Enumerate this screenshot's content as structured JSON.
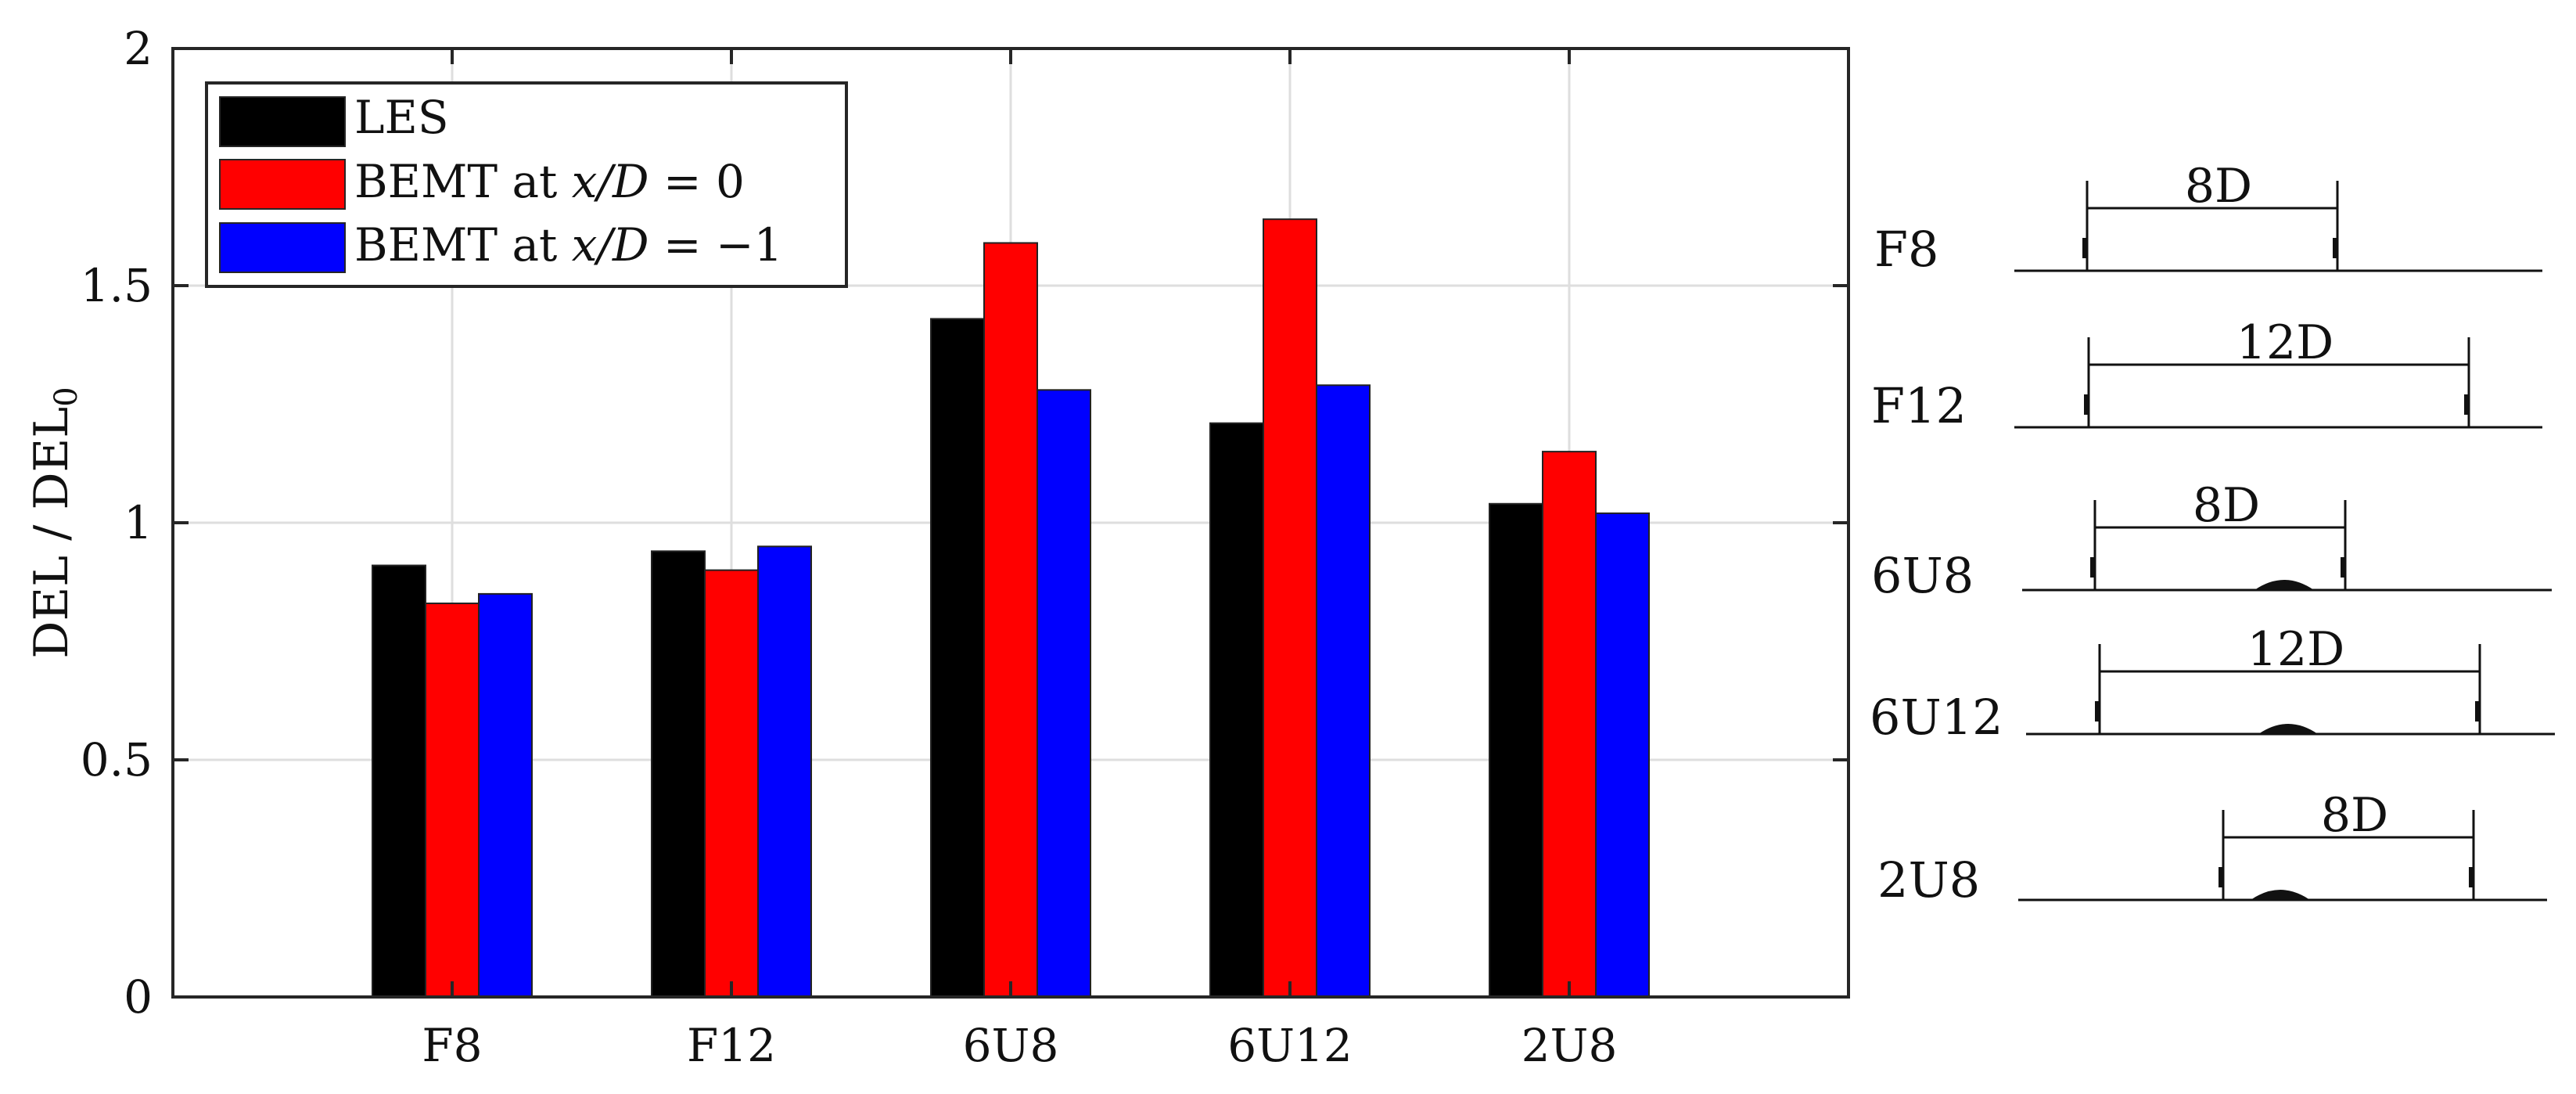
{
  "chart_data": {
    "type": "bar",
    "categories": [
      "F8",
      "F12",
      "6U8",
      "6U12",
      "2U8"
    ],
    "series": [
      {
        "name": "LES",
        "color": "#000000",
        "values": [
          0.91,
          0.94,
          1.43,
          1.21,
          1.04
        ]
      },
      {
        "name": "BEMT at x/D = 0",
        "color": "#ff0000",
        "values": [
          0.83,
          0.9,
          1.59,
          1.64,
          1.15
        ]
      },
      {
        "name": "BEMT at x/D = −1",
        "color": "#0000ff",
        "values": [
          0.85,
          0.95,
          1.28,
          1.29,
          1.02
        ]
      }
    ],
    "legend_labels": {
      "les": "LES",
      "bemt0_prefix": "BEMT at ",
      "bemt0_var": "x/D",
      "bemt0_eq": " = 0",
      "bemt1_prefix": "BEMT at ",
      "bemt1_var": "x/D",
      "bemt1_eq": " = −1"
    },
    "ylabel": {
      "main": "DEL / DEL",
      "sub": "0"
    },
    "xlabel": "",
    "ylim": [
      0,
      2
    ],
    "yticks": [
      0,
      0.5,
      1,
      1.5,
      2
    ],
    "ytick_labels": [
      "0",
      "0.5",
      "1",
      "1.5",
      "2"
    ],
    "grid": true,
    "legend_position": "top-left"
  },
  "layout_schematics": [
    {
      "label": "F8",
      "spacing": "8D",
      "hill": false
    },
    {
      "label": "F12",
      "spacing": "12D",
      "hill": false
    },
    {
      "label": "6U8",
      "spacing": "8D",
      "hill": true
    },
    {
      "label": "6U12",
      "spacing": "12D",
      "hill": true
    },
    {
      "label": "2U8",
      "spacing": "8D",
      "hill": true
    }
  ]
}
